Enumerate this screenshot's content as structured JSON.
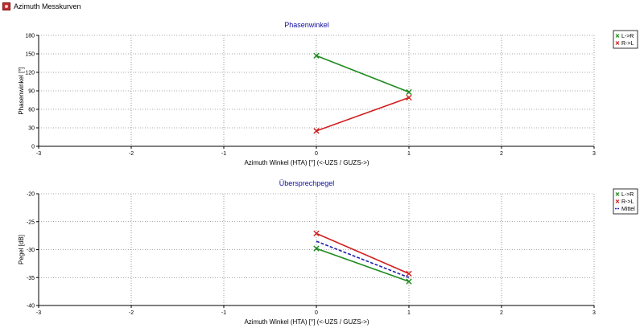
{
  "window": {
    "title": "Azimuth Messkurven",
    "icon": "app-icon"
  },
  "chart_data": [
    {
      "type": "line",
      "title": "Phasenwinkel",
      "xlabel": "Azimuth Winkel (HTA) [°] (<-UZS / GUZS->)",
      "ylabel": "Phasenwinkel [°]",
      "xlim": [
        -3,
        3
      ],
      "ylim": [
        0,
        180
      ],
      "xticks": [
        -3,
        -2,
        -1,
        0,
        1,
        2,
        3
      ],
      "yticks": [
        0,
        30,
        60,
        90,
        120,
        150,
        180
      ],
      "grid": true,
      "legend_position": "right-top",
      "series": [
        {
          "name": "L->R",
          "color": "#1e8a1e",
          "marker": "x",
          "dash": false,
          "x": [
            0,
            1
          ],
          "y": [
            147,
            88
          ]
        },
        {
          "name": "R->L",
          "color": "#d02020",
          "marker": "x",
          "dash": false,
          "x": [
            0,
            1
          ],
          "y": [
            25,
            79
          ]
        }
      ]
    },
    {
      "type": "line",
      "title": "Übersprechpegel",
      "xlabel": "Azimuth Winkel (HTA) [°] (<-UZS / GUZS->)",
      "ylabel": "Pegel [dB]",
      "xlim": [
        -3,
        3
      ],
      "ylim": [
        -40,
        -20
      ],
      "xticks": [
        -3,
        -2,
        -1,
        0,
        1,
        2,
        3
      ],
      "yticks": [
        -40,
        -35,
        -30,
        -25,
        -20
      ],
      "grid": true,
      "legend_position": "right-top",
      "series": [
        {
          "name": "L->R",
          "color": "#1e8a1e",
          "marker": "x",
          "dash": false,
          "x": [
            0,
            1
          ],
          "y": [
            -29.8,
            -35.7
          ]
        },
        {
          "name": "R->L",
          "color": "#d02020",
          "marker": "x",
          "dash": false,
          "x": [
            0,
            1
          ],
          "y": [
            -27.1,
            -34.3
          ]
        },
        {
          "name": "Mittel",
          "color": "#2020b0",
          "marker": "none",
          "dash": true,
          "x": [
            0,
            1
          ],
          "y": [
            -28.5,
            -35.0
          ]
        }
      ]
    }
  ]
}
